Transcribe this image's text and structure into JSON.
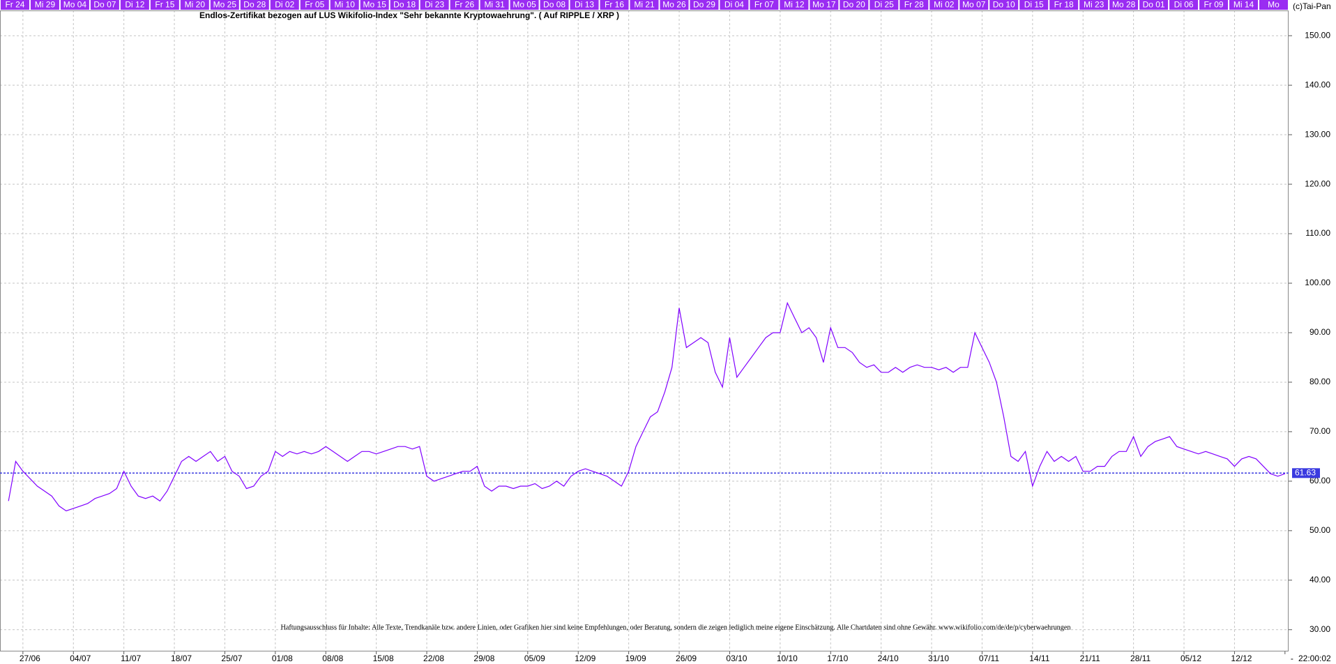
{
  "chart_data": {
    "type": "line",
    "title": "Endlos-Zertifikat bezogen auf LUS Wikifolio-Index \"Sehr bekannte Kryptowaehrung\". ( Auf RIPPLE / XRP )",
    "copyright": "(c)Tai-Pan",
    "footer": "Haftungsausschluss für Inhalte: Alle Texte, Trendkanäle bzw. andere Linien, oder Grafiken hier sind keine Empfehlungen, oder Beratung, sondern die zeigen lediglich meine eigene Einschätzung. Alle Chartdaten sind ohne Gewähr.  www.wikifolio.com/de/de/p/cyberwaehrungen",
    "time_label": "22:00:02",
    "day_strip": [
      "Fr 24",
      "Mi 29",
      "Mo 04",
      "Do 07",
      "Di 12",
      "Fr 15",
      "Mi 20",
      "Mo 25",
      "Do 28",
      "Di 02",
      "Fr 05",
      "Mi 10",
      "Mo 15",
      "Do 18",
      "Di 23",
      "Fr 26",
      "Mi 31",
      "Mo 05",
      "Do 08",
      "Di 13",
      "Fr 16",
      "Mi 21",
      "Mo 26",
      "Do 29",
      "Di 04",
      "Fr 07",
      "Mi 12",
      "Mo 17",
      "Do 20",
      "Di 25",
      "Fr 28",
      "Mi 02",
      "Mo 07",
      "Do 10",
      "Di 15",
      "Fr 18",
      "Mi 23",
      "Mo 28",
      "Do 01",
      "Di 06",
      "Fr 09",
      "Mi 14",
      "Mo"
    ],
    "categories": [
      null,
      null,
      "27/06",
      null,
      null,
      null,
      null,
      null,
      null,
      "04/07",
      null,
      null,
      null,
      null,
      null,
      null,
      "11/07",
      null,
      null,
      null,
      null,
      null,
      null,
      "18/07",
      null,
      null,
      null,
      null,
      null,
      null,
      "25/07",
      null,
      null,
      null,
      null,
      null,
      null,
      "01/08",
      null,
      null,
      null,
      null,
      null,
      null,
      "08/08",
      null,
      null,
      null,
      null,
      null,
      null,
      "15/08",
      null,
      null,
      null,
      null,
      null,
      null,
      "22/08",
      null,
      null,
      null,
      null,
      null,
      null,
      "29/08",
      null,
      null,
      null,
      null,
      null,
      null,
      "05/09",
      null,
      null,
      null,
      null,
      null,
      null,
      "12/09",
      null,
      null,
      null,
      null,
      null,
      null,
      "19/09",
      null,
      null,
      null,
      null,
      null,
      null,
      "26/09",
      null,
      null,
      null,
      null,
      null,
      null,
      "03/10",
      null,
      null,
      null,
      null,
      null,
      null,
      "10/10",
      null,
      null,
      null,
      null,
      null,
      null,
      "17/10",
      null,
      null,
      null,
      null,
      null,
      null,
      "24/10",
      null,
      null,
      null,
      null,
      null,
      null,
      "31/10",
      null,
      null,
      null,
      null,
      null,
      null,
      "07/11",
      null,
      null,
      null,
      null,
      null,
      null,
      "14/11",
      null,
      null,
      null,
      null,
      null,
      null,
      "21/11",
      null,
      null,
      null,
      null,
      null,
      null,
      "28/11",
      null,
      null,
      null,
      null,
      null,
      null,
      "05/12",
      null,
      null,
      null,
      null,
      null,
      null,
      "12/12",
      null,
      null,
      null,
      null,
      null,
      null,
      "-"
    ],
    "series": [
      {
        "color": "#8000ff",
        "values": [
          56,
          64,
          62,
          60.5,
          59,
          58,
          57,
          55,
          54,
          54.5,
          55,
          55.5,
          56.5,
          57,
          57.5,
          58.5,
          62,
          59,
          57,
          56.5,
          57,
          56,
          58,
          61,
          64,
          65,
          64,
          65,
          66,
          64,
          65,
          62,
          61,
          58.5,
          59,
          61,
          62,
          66,
          65,
          66,
          65.5,
          66,
          65.5,
          66,
          67,
          66,
          65,
          64,
          65,
          66,
          66,
          65.5,
          66,
          66.5,
          67,
          67,
          66.5,
          67,
          61,
          60,
          60.5,
          61,
          61.5,
          62,
          62,
          63,
          59,
          58,
          59,
          59,
          58.5,
          59,
          59,
          59.5,
          58.5,
          59,
          60,
          59,
          61,
          62,
          62.5,
          62,
          61.5,
          61,
          60,
          59,
          62,
          67,
          70,
          73,
          74,
          78,
          83,
          95,
          87,
          88,
          89,
          88,
          82,
          79,
          89,
          81,
          83,
          85,
          87,
          89,
          90,
          90,
          96,
          93,
          90,
          91,
          89,
          84,
          91,
          87,
          87,
          86,
          84,
          83,
          83.5,
          82,
          82,
          83,
          82,
          83,
          83.5,
          83,
          83,
          82.5,
          83,
          82,
          83,
          83,
          90,
          87,
          84,
          80,
          73,
          65,
          64,
          66,
          59,
          63,
          66,
          64,
          65,
          64,
          65,
          62,
          62,
          63,
          63,
          65,
          66,
          66,
          69,
          65,
          67,
          68,
          68.5,
          69,
          67,
          66.5,
          66,
          65.5,
          66,
          65.5,
          65,
          64.5,
          63,
          64.5,
          65,
          64.5,
          63,
          61.5,
          61,
          61.5
        ]
      }
    ],
    "reference_line": {
      "value": 61.63,
      "color": "#3a3ae0"
    },
    "ylim": [
      25.6,
      155.1
    ],
    "yticks": [
      {
        "value": 30,
        "label": "30.00"
      },
      {
        "value": 40,
        "label": "40.00"
      },
      {
        "value": 50,
        "label": "50.00"
      },
      {
        "value": 60,
        "label": "60.00"
      },
      {
        "value": 70,
        "label": "70.00"
      },
      {
        "value": 80,
        "label": "80.00"
      },
      {
        "value": 90,
        "label": "90.00"
      },
      {
        "value": 100,
        "label": "100.00"
      },
      {
        "value": 110,
        "label": "110.00"
      },
      {
        "value": 120,
        "label": "120.00"
      },
      {
        "value": 130,
        "label": "130.00"
      },
      {
        "value": 140,
        "label": "140.00"
      },
      {
        "value": 150,
        "label": "150.00"
      }
    ],
    "grid": true
  }
}
